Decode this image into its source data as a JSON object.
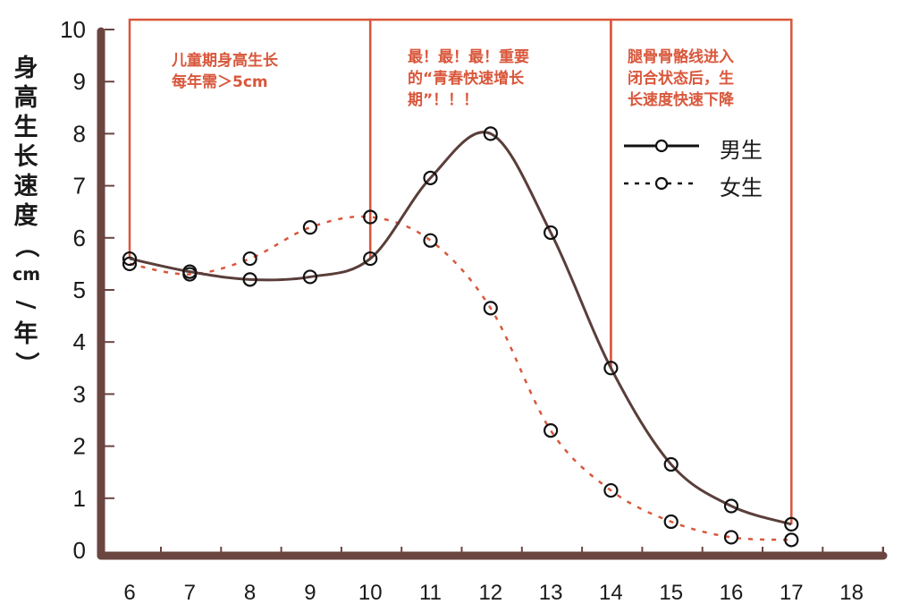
{
  "chart_data": {
    "type": "line",
    "title": "",
    "xlabel": "",
    "ylabel": "身高生长速度（cm/年）",
    "x": [
      6,
      7,
      8,
      9,
      10,
      11,
      12,
      13,
      14,
      15,
      16,
      17
    ],
    "x_ticks": [
      6,
      7,
      8,
      9,
      10,
      11,
      12,
      13,
      14,
      15,
      16,
      17,
      18
    ],
    "y_ticks": [
      0,
      1,
      2,
      3,
      4,
      5,
      6,
      7,
      8,
      9,
      10
    ],
    "ylim": [
      0,
      10
    ],
    "xlim": [
      6,
      18
    ],
    "grid": false,
    "legend_position": "upper right",
    "series": [
      {
        "name": "男生",
        "style": "solid",
        "color": "#5a3e3a",
        "values": [
          5.6,
          5.35,
          5.2,
          5.25,
          5.6,
          7.15,
          8.0,
          6.1,
          3.5,
          1.65,
          0.85,
          0.5
        ]
      },
      {
        "name": "女生",
        "style": "dashed",
        "color": "#d9573b",
        "values": [
          5.5,
          5.3,
          5.6,
          6.2,
          6.4,
          5.95,
          4.65,
          2.3,
          1.15,
          0.55,
          0.25,
          0.2
        ]
      }
    ],
    "annotations": [
      {
        "region": [
          6,
          10
        ],
        "lines": [
          "儿童期身高生长",
          "每年需＞5cm"
        ]
      },
      {
        "region": [
          10,
          14
        ],
        "lines": [
          "最！最！最！重要",
          "的“青春快速增长",
          "期”！！！"
        ]
      },
      {
        "region": [
          14,
          17
        ],
        "lines": [
          "腿骨骨骼线进入",
          "闭合状态后，生",
          "长速度快速下降"
        ]
      }
    ]
  },
  "axis": {
    "ylabel_chars": [
      "身",
      "高",
      "生",
      "长",
      "速",
      "度",
      "（",
      "cm",
      "/",
      "年",
      "）"
    ],
    "color": "#6b4540",
    "region_color": "#d9573b"
  },
  "legend": {
    "male_label": "男生",
    "female_label": "女生"
  }
}
